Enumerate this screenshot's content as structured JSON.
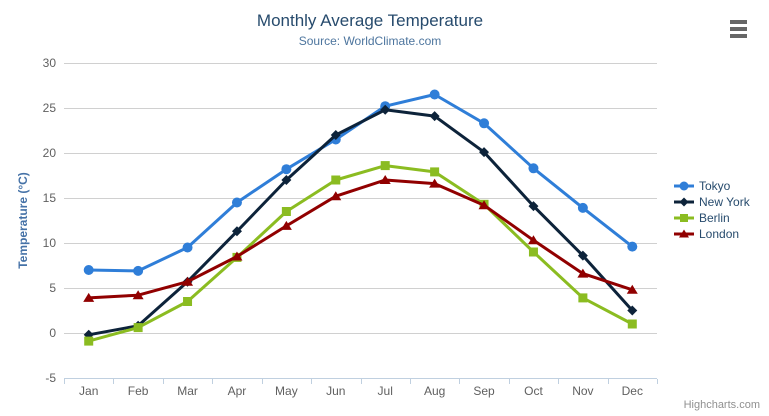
{
  "credits": "Highcharts.com",
  "colors": {
    "title": "#274b6d",
    "subtitle": "#4d759e",
    "axis_title": "#4572a7",
    "tick_label": "#606060",
    "grid_line": "#d0d0d0",
    "x_axis_line": "#c0d0e0",
    "legend_text": "#274b6d",
    "credits_text": "#909090",
    "menu_icon": "#666666"
  },
  "chart_data": {
    "type": "line",
    "title": "Monthly Average Temperature",
    "subtitle": "Source: WorldClimate.com",
    "xlabel": "",
    "ylabel": "Temperature (°C)",
    "ylim": [
      -5,
      30
    ],
    "ytick_interval": 5,
    "grid": true,
    "legend_position": "right-middle",
    "categories": [
      "Jan",
      "Feb",
      "Mar",
      "Apr",
      "May",
      "Jun",
      "Jul",
      "Aug",
      "Sep",
      "Oct",
      "Nov",
      "Dec"
    ],
    "series": [
      {
        "name": "Tokyo",
        "color": "#2f7ed8",
        "symbol": "circle",
        "values": [
          7.0,
          6.9,
          9.5,
          14.5,
          18.2,
          21.5,
          25.2,
          26.5,
          23.3,
          18.3,
          13.9,
          9.6
        ]
      },
      {
        "name": "New York",
        "color": "#0d233a",
        "symbol": "diamond",
        "values": [
          -0.2,
          0.8,
          5.7,
          11.3,
          17.0,
          22.0,
          24.8,
          24.1,
          20.1,
          14.1,
          8.6,
          2.5
        ]
      },
      {
        "name": "Berlin",
        "color": "#8bbc21",
        "symbol": "square",
        "values": [
          -0.9,
          0.6,
          3.5,
          8.4,
          13.5,
          17.0,
          18.6,
          17.9,
          14.3,
          9.0,
          3.9,
          1.0
        ]
      },
      {
        "name": "London",
        "color": "#910000",
        "symbol": "triangle",
        "values": [
          3.9,
          4.2,
          5.7,
          8.5,
          11.9,
          15.2,
          17.0,
          16.6,
          14.2,
          10.3,
          6.6,
          4.8
        ]
      }
    ]
  }
}
